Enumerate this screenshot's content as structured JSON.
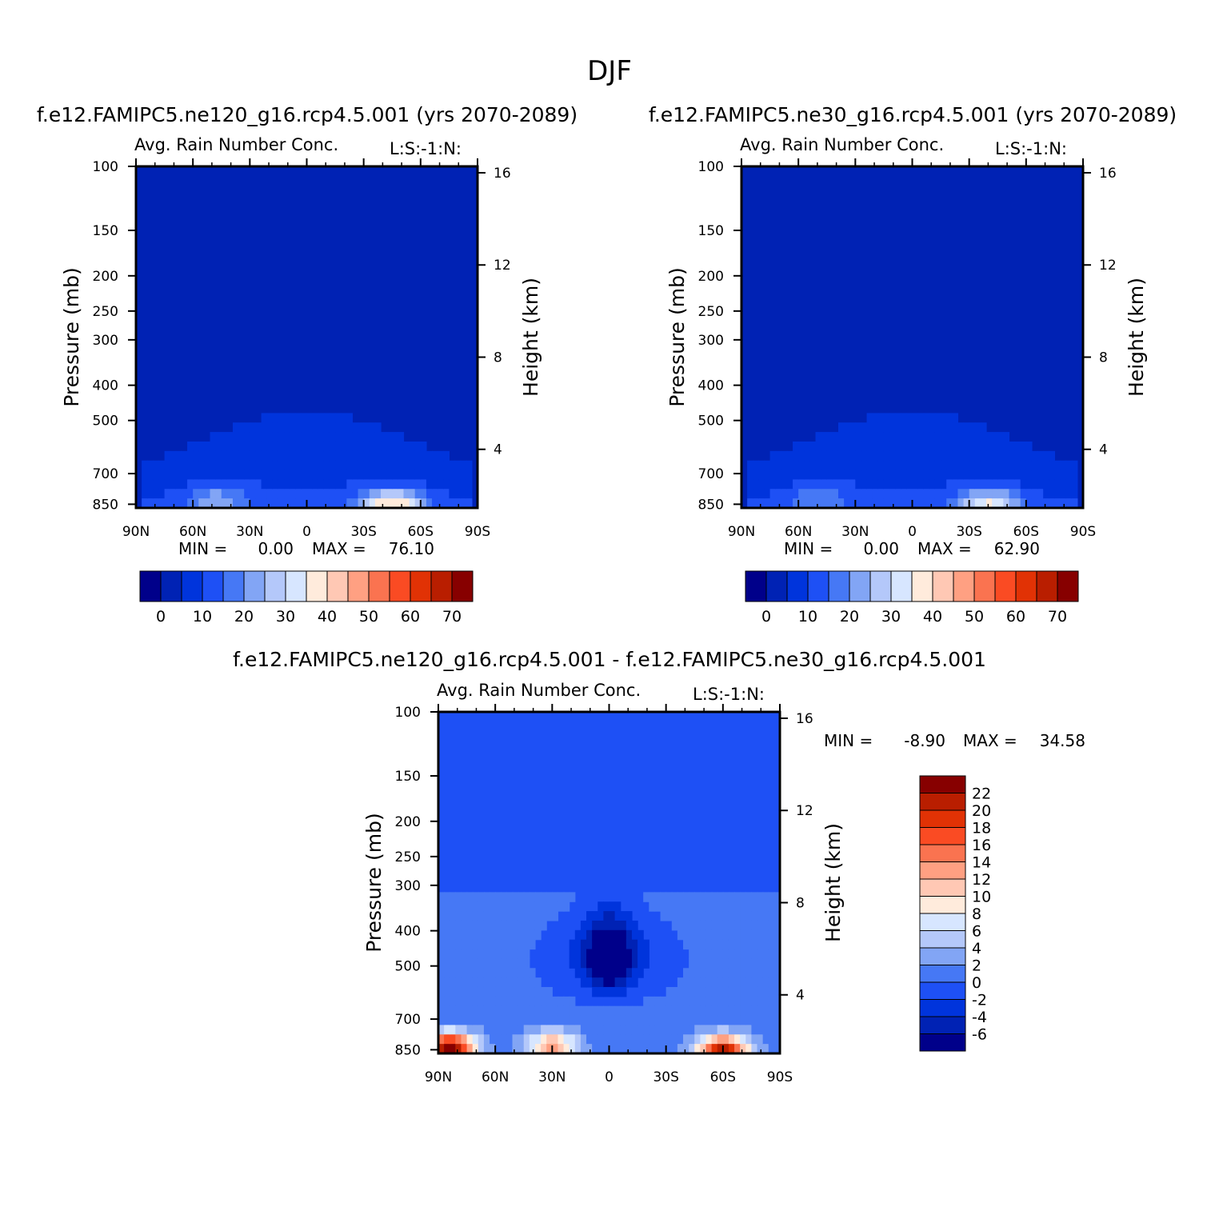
{
  "figure_title": "DJF",
  "panels": [
    {
      "case_title": "f.e12.FAMIPC5.ne120_g16.rcp4.5.001 (yrs 2070-2089)",
      "title": "Avg. Rain Number Conc.",
      "corner": "L:S:-1:N:",
      "min_text": "MIN =",
      "min_val": "0.00",
      "max_text": "MAX =",
      "max_val": "76.10"
    },
    {
      "case_title": "f.e12.FAMIPC5.ne30_g16.rcp4.5.001 (yrs 2070-2089)",
      "title": "Avg. Rain Number Conc.",
      "corner": "L:S:-1:N:",
      "min_text": "MIN =",
      "min_val": "0.00",
      "max_text": "MAX =",
      "max_val": "62.90"
    },
    {
      "case_title": "f.e12.FAMIPC5.ne120_g16.rcp4.5.001 - f.e12.FAMIPC5.ne30_g16.rcp4.5.001",
      "title": "Avg. Rain Number Conc.",
      "corner": "L:S:-1:N:",
      "min_text": "MIN =",
      "min_val": "-8.90",
      "max_text": "MAX =",
      "max_val": "34.58"
    }
  ],
  "axes": {
    "y_left_label": "Pressure (mb)",
    "y_right_label": "Height (km)",
    "x_ticks": [
      "90N",
      "60N",
      "30N",
      "0",
      "30S",
      "60S",
      "90S"
    ],
    "y_ticks": [
      "100",
      "150",
      "200",
      "250",
      "300",
      "400",
      "500",
      "700",
      "850"
    ],
    "y_right_ticks": [
      "16",
      "12",
      "8",
      "4"
    ]
  },
  "colorbars": {
    "panel_scale": {
      "labels": [
        "0",
        "10",
        "20",
        "30",
        "40",
        "50",
        "60",
        "70"
      ],
      "colors": [
        "#00008a",
        "#0022b4",
        "#0034dc",
        "#1e50f5",
        "#4678f5",
        "#82a5f5",
        "#b4c8fa",
        "#d7e6ff",
        "#ffebdc",
        "#ffc8b4",
        "#ffa082",
        "#fa7350",
        "#fa4b23",
        "#e13205",
        "#b91e00",
        "#870000"
      ]
    },
    "diff_scale": {
      "labels": [
        "22",
        "20",
        "18",
        "16",
        "14",
        "12",
        "10",
        "8",
        "6",
        "4",
        "2",
        "0",
        "-2",
        "-4",
        "-6"
      ],
      "colors": [
        "#870000",
        "#b91e00",
        "#e13205",
        "#fa4b23",
        "#fa7350",
        "#ffa082",
        "#ffc8b4",
        "#ffebdc",
        "#d7e6ff",
        "#b4c8fa",
        "#82a5f5",
        "#4678f5",
        "#1e50f5",
        "#0034dc",
        "#0022b4",
        "#00008a"
      ]
    }
  },
  "chart_data": [
    {
      "type": "heatmap",
      "title": "Avg. Rain Number Conc.",
      "xlabel": "",
      "ylabel": "Pressure (mb)",
      "y2label": "Height (km)",
      "x": [
        "90N",
        "60N",
        "30N",
        "0",
        "30S",
        "60S",
        "90S"
      ],
      "ylim": [
        100,
        850
      ],
      "log_y": true,
      "min": 0.0,
      "max": 76.1,
      "levels": [
        0,
        10,
        20,
        30,
        40,
        50,
        60,
        70
      ],
      "background_value": 3,
      "features": [
        {
          "lat": 47,
          "p": 830,
          "peak": 38,
          "note": "northern mid-latitude low-level maximum"
        },
        {
          "lat": -45,
          "p": 850,
          "peak": 76,
          "note": "southern mid-latitude low-level maximum"
        }
      ]
    },
    {
      "type": "heatmap",
      "title": "Avg. Rain Number Conc.",
      "xlabel": "",
      "ylabel": "Pressure (mb)",
      "y2label": "Height (km)",
      "x": [
        "90N",
        "60N",
        "30N",
        "0",
        "30S",
        "60S",
        "90S"
      ],
      "ylim": [
        100,
        850
      ],
      "log_y": true,
      "min": 0.0,
      "max": 62.9,
      "levels": [
        0,
        10,
        20,
        30,
        40,
        50,
        60,
        70
      ],
      "background_value": 3,
      "features": [
        {
          "lat": 50,
          "p": 830,
          "peak": 30,
          "note": "northern mid-latitude low-level maximum"
        },
        {
          "lat": -40,
          "p": 850,
          "peak": 62,
          "note": "southern mid-latitude low-level maximum"
        }
      ]
    },
    {
      "type": "heatmap",
      "title": "Avg. Rain Number Conc.",
      "xlabel": "",
      "ylabel": "Pressure (mb)",
      "y2label": "Height (km)",
      "x": [
        "90N",
        "60N",
        "30N",
        "0",
        "30S",
        "60S",
        "90S"
      ],
      "ylim": [
        100,
        850
      ],
      "log_y": true,
      "min": -8.9,
      "max": 34.58,
      "levels": [
        -6,
        -4,
        -2,
        0,
        2,
        4,
        6,
        8,
        10,
        12,
        14,
        16,
        18,
        20,
        22
      ],
      "background_value": -1,
      "features": [
        {
          "lat": 84,
          "p": 840,
          "peak": 24,
          "note": "polar low-level positive difference"
        },
        {
          "lat": 30,
          "p": 830,
          "peak": 13,
          "note": "northern subtropical positive difference"
        },
        {
          "lat": -60,
          "p": 850,
          "peak": 22,
          "note": "southern mid-latitude positive difference"
        },
        {
          "lat": 0,
          "p": 470,
          "peak": -8,
          "note": "equatorial mid-level negative difference"
        }
      ]
    }
  ]
}
